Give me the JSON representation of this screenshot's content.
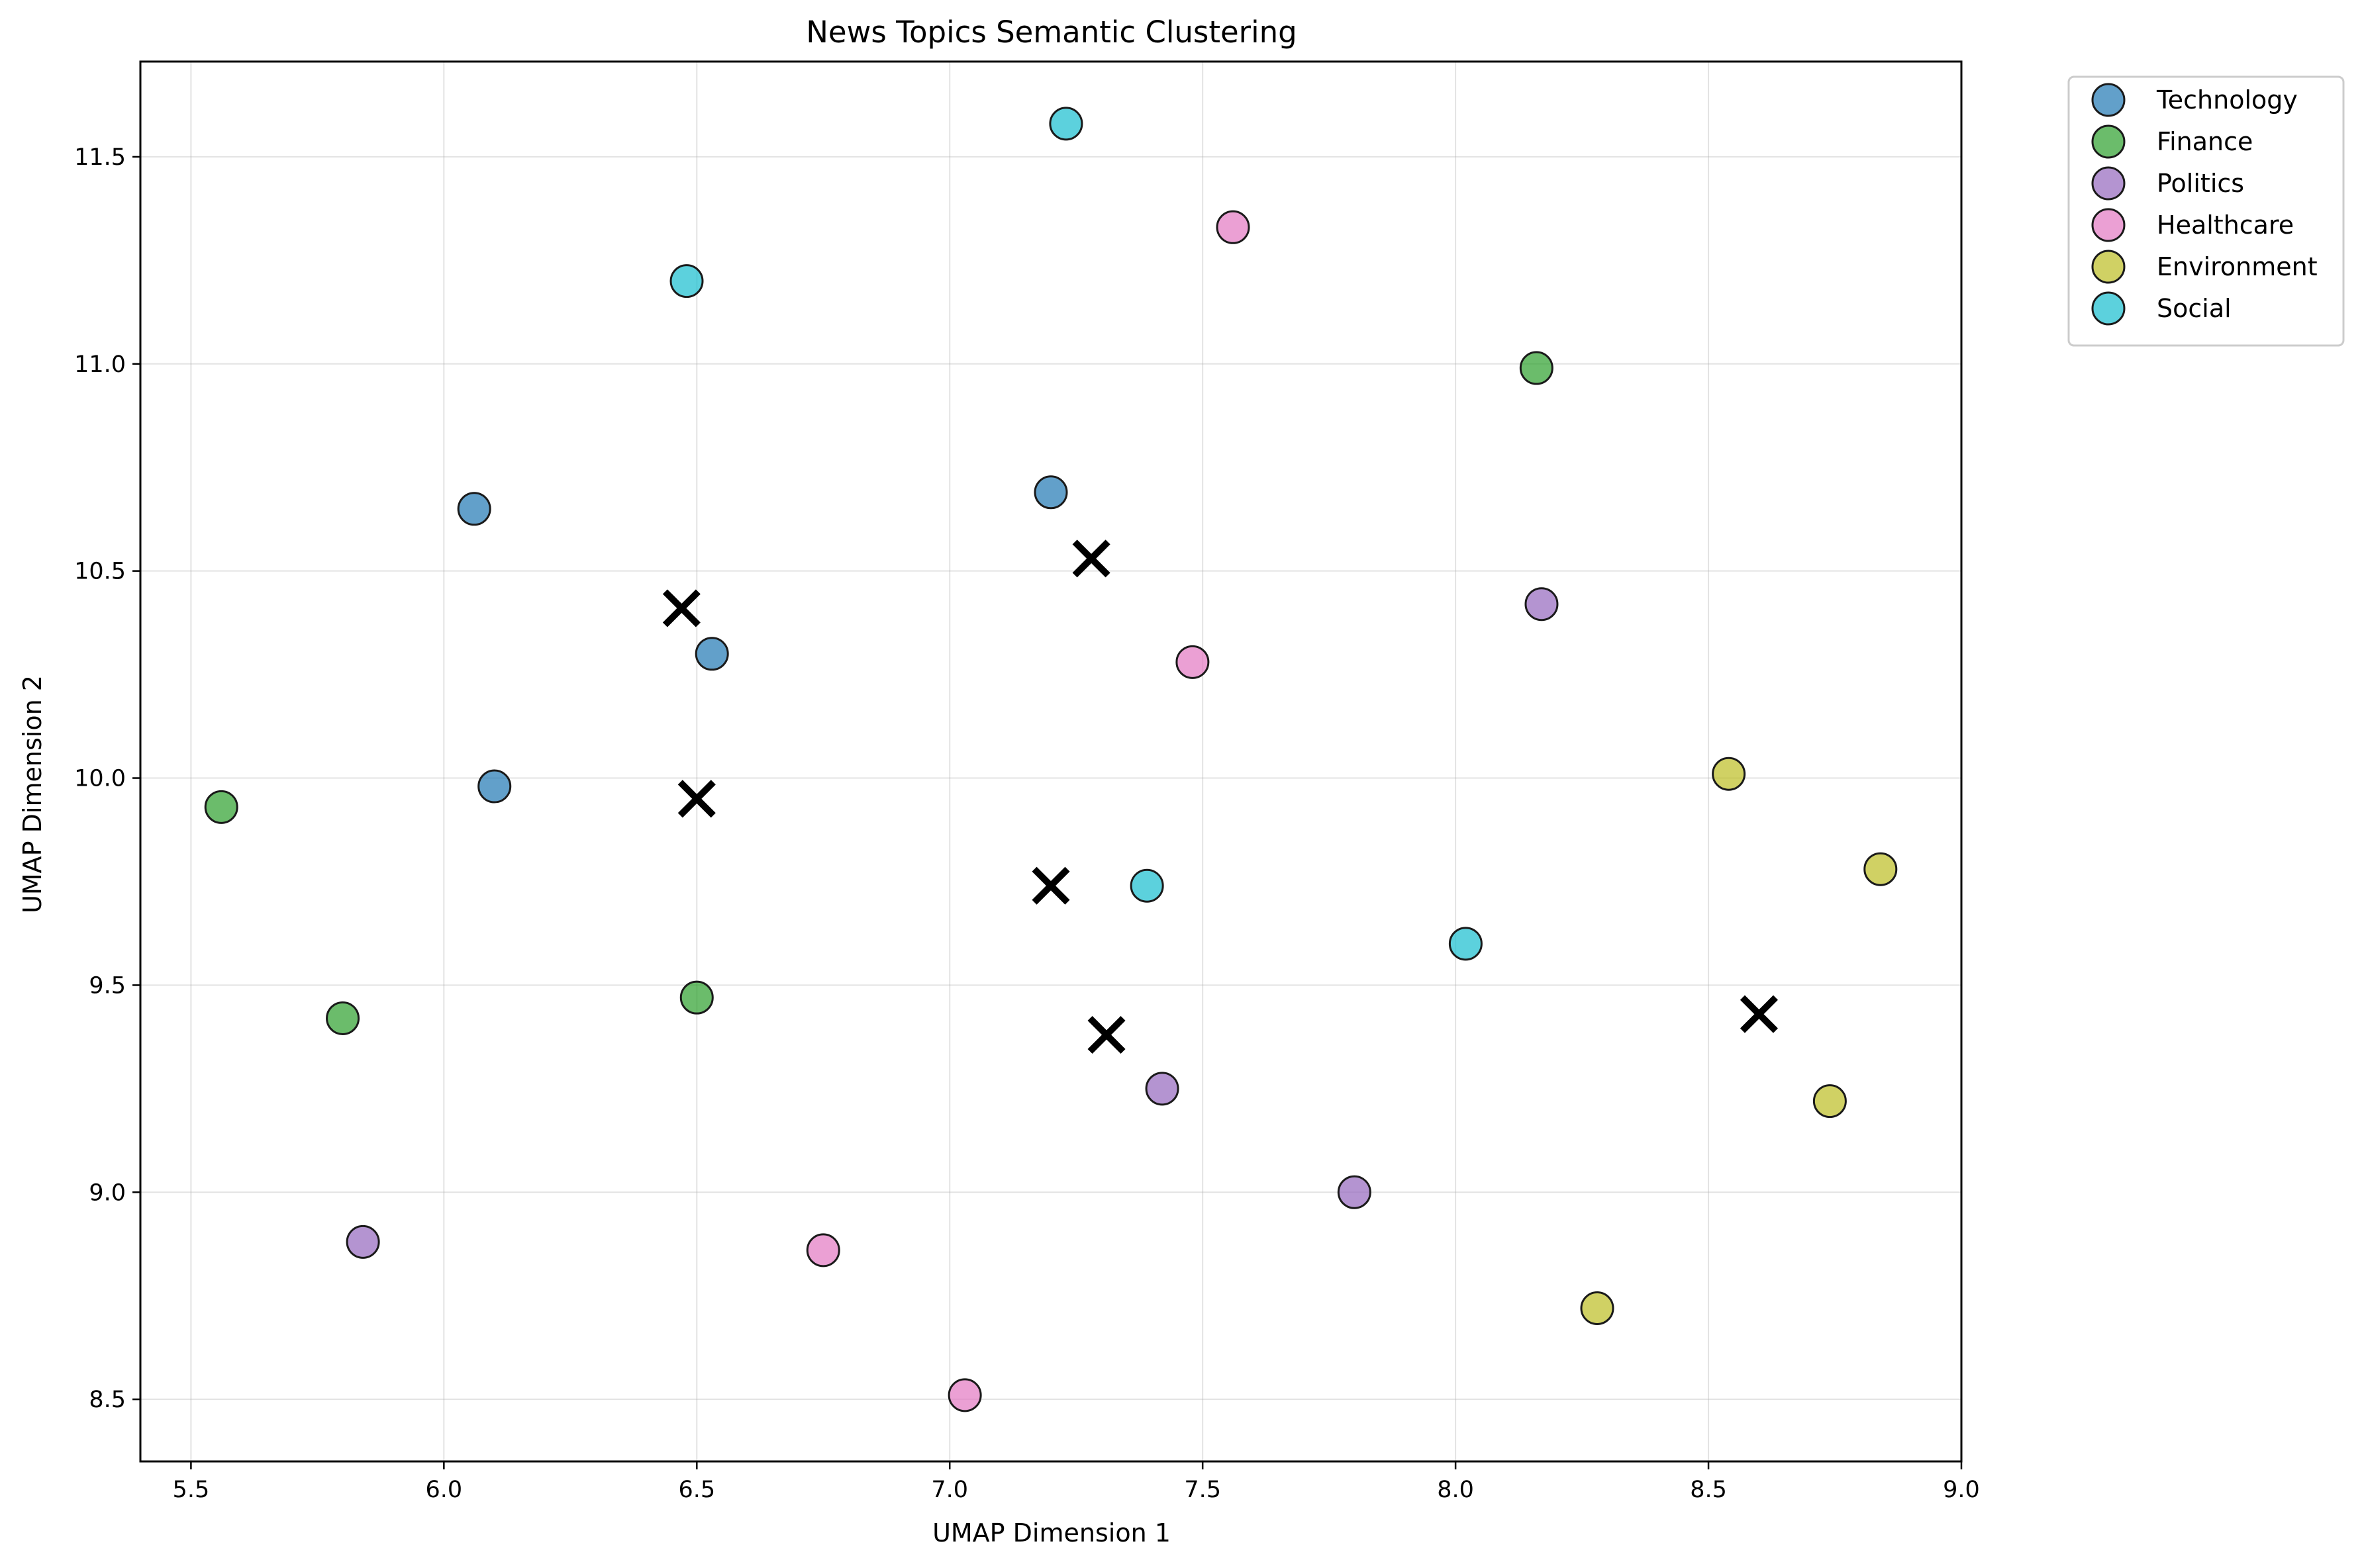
{
  "chart_data": {
    "type": "scatter",
    "title": "News Topics Semantic Clustering",
    "xlabel": "UMAP Dimension 1",
    "ylabel": "UMAP Dimension 2",
    "xlim": [
      5.4,
      9.0
    ],
    "ylim": [
      8.35,
      11.73
    ],
    "xticks": [
      5.5,
      6.0,
      6.5,
      7.0,
      7.5,
      8.0,
      8.5,
      9.0
    ],
    "yticks": [
      8.5,
      9.0,
      9.5,
      10.0,
      10.5,
      11.0,
      11.5
    ],
    "xtick_labels": [
      "5.5",
      "6.0",
      "6.5",
      "7.0",
      "7.5",
      "8.0",
      "8.5",
      "9.0"
    ],
    "ytick_labels": [
      "8.5",
      "9.0",
      "9.5",
      "10.0",
      "10.5",
      "11.0",
      "11.5"
    ],
    "grid": true,
    "legend_position": "outside-top-right",
    "series": [
      {
        "name": "Technology",
        "color": "#1f77b4",
        "points": [
          [
            6.06,
            10.65
          ],
          [
            6.1,
            9.98
          ],
          [
            6.53,
            10.3
          ],
          [
            7.2,
            10.69
          ]
        ]
      },
      {
        "name": "Finance",
        "color": "#2ca02c",
        "points": [
          [
            5.56,
            9.93
          ],
          [
            5.8,
            9.42
          ],
          [
            6.5,
            9.47
          ],
          [
            8.16,
            10.99
          ]
        ]
      },
      {
        "name": "Politics",
        "color": "#9467bd",
        "points": [
          [
            5.84,
            8.88
          ],
          [
            7.42,
            9.25
          ],
          [
            7.8,
            9.0
          ],
          [
            8.17,
            10.42
          ]
        ]
      },
      {
        "name": "Healthcare",
        "color": "#e377c2",
        "points": [
          [
            6.75,
            8.86
          ],
          [
            7.03,
            8.51
          ],
          [
            7.48,
            10.28
          ],
          [
            7.56,
            11.33
          ]
        ]
      },
      {
        "name": "Environment",
        "color": "#bcbd22",
        "points": [
          [
            8.28,
            8.72
          ],
          [
            8.54,
            10.01
          ],
          [
            8.74,
            9.22
          ],
          [
            8.84,
            9.78
          ]
        ]
      },
      {
        "name": "Social",
        "color": "#17becf",
        "points": [
          [
            6.48,
            11.2
          ],
          [
            7.23,
            11.58
          ],
          [
            7.39,
            9.74
          ],
          [
            8.02,
            9.6
          ]
        ]
      }
    ],
    "centroids": [
      [
        6.47,
        10.41
      ],
      [
        6.5,
        9.95
      ],
      [
        7.2,
        9.74
      ],
      [
        7.28,
        10.53
      ],
      [
        7.31,
        9.38
      ],
      [
        8.6,
        9.43
      ]
    ]
  }
}
